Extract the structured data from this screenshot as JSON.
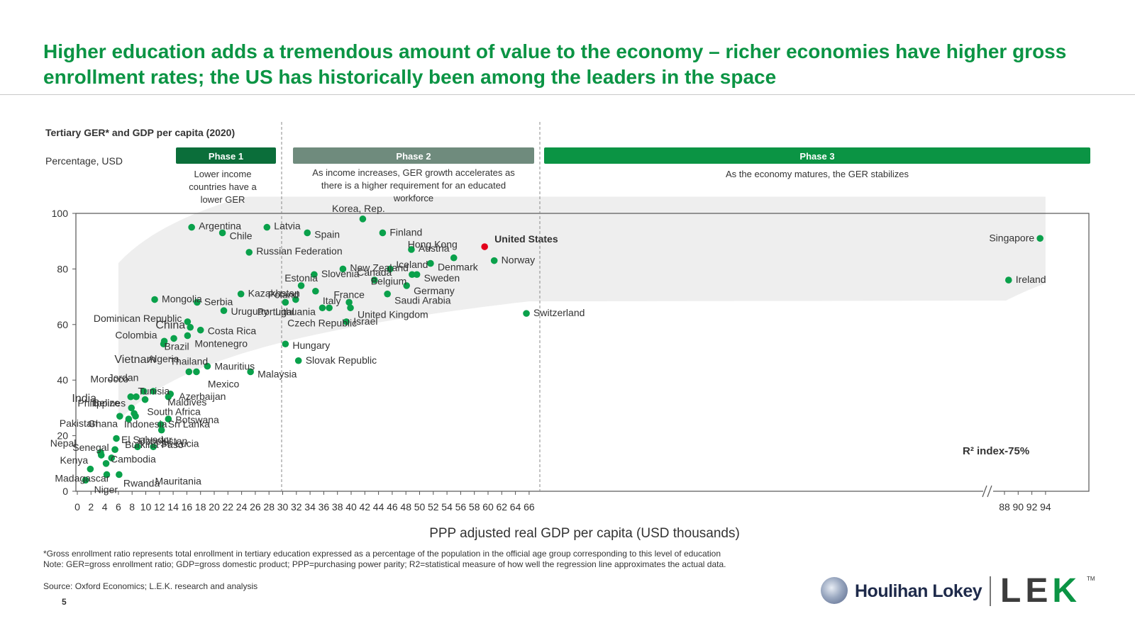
{
  "header": {
    "title": "Higher education adds a tremendous amount of value to the economy – richer economies have higher gross enrollment rates; the US has historically been among the leaders in the space"
  },
  "chart_data": {
    "type": "scatter",
    "title": "Tertiary GER* and GDP per capita (2020)",
    "subtitle": "Percentage, USD",
    "xlabel": "PPP adjusted real GDP per capita (USD thousands)",
    "ylabel": "",
    "xlim": [
      0,
      94
    ],
    "ylim": [
      0,
      100
    ],
    "x_axis_break": "after 66, continues 88–94",
    "x_ticks": [
      "0",
      "2",
      "4",
      "6",
      "8",
      "10",
      "12",
      "14",
      "16",
      "18",
      "20",
      "22",
      "24",
      "26",
      "28",
      "30",
      "32",
      "34",
      "36",
      "38",
      "40",
      "42",
      "44",
      "46",
      "48",
      "50",
      "52",
      "54",
      "56",
      "58",
      "60",
      "62",
      "64",
      "66",
      "88",
      "90",
      "92",
      "94"
    ],
    "y_ticks": [
      "0",
      "20",
      "40",
      "60",
      "80",
      "100"
    ],
    "grid": false,
    "phases": [
      {
        "label": "Phase 1",
        "description": "Lower income countries have a lower GER",
        "color": "#0b6e3a"
      },
      {
        "label": "Phase 2",
        "description": "As income increases, GER growth accelerates as there is a higher requirement for an educated workforce",
        "color": "#6f8b7d"
      },
      {
        "label": "Phase 3",
        "description": "As the economy matures, the GER stabilizes",
        "color": "#0b9444"
      }
    ],
    "annotation": "R² index-75%",
    "highlight_color": "#e3001b",
    "point_color": "#0aa14b",
    "points": [
      {
        "name": "Argentina",
        "x": 16.7,
        "y": 95
      },
      {
        "name": "Chile",
        "x": 21.2,
        "y": 93
      },
      {
        "name": "Latvia",
        "x": 27.7,
        "y": 95
      },
      {
        "name": "Spain",
        "x": 33.6,
        "y": 93
      },
      {
        "name": "Korea, Rep.",
        "x": 41.7,
        "y": 98
      },
      {
        "name": "Finland",
        "x": 44.6,
        "y": 93
      },
      {
        "name": "Russian Federation",
        "x": 25.1,
        "y": 86
      },
      {
        "name": "Austria",
        "x": 48.8,
        "y": 87
      },
      {
        "name": "Hong Kong",
        "x": 55.0,
        "y": 84
      },
      {
        "name": "United States",
        "x": 59.5,
        "y": 88
      },
      {
        "name": "Singapore",
        "x": 93.2,
        "y": 91
      },
      {
        "name": "Norway",
        "x": 60.9,
        "y": 83
      },
      {
        "name": "Denmark",
        "x": 51.6,
        "y": 82
      },
      {
        "name": "New Zealand",
        "x": 38.8,
        "y": 80
      },
      {
        "name": "Belgium",
        "x": 45.7,
        "y": 80
      },
      {
        "name": "Iceland",
        "x": 48.9,
        "y": 78
      },
      {
        "name": "Sweden",
        "x": 49.6,
        "y": 78
      },
      {
        "name": "Estonia",
        "x": 32.7,
        "y": 74
      },
      {
        "name": "Slovenia",
        "x": 34.6,
        "y": 78
      },
      {
        "name": "Canada",
        "x": 43.4,
        "y": 76
      },
      {
        "name": "Germany",
        "x": 48.1,
        "y": 74
      },
      {
        "name": "Ireland",
        "x": 88.6,
        "y": 76
      },
      {
        "name": "Saudi Arabia",
        "x": 45.3,
        "y": 71
      },
      {
        "name": "Italy",
        "x": 34.8,
        "y": 72
      },
      {
        "name": "Poland",
        "x": 30.4,
        "y": 68
      },
      {
        "name": "Portugal",
        "x": 31.9,
        "y": 69
      },
      {
        "name": "Lithuania",
        "x": 35.8,
        "y": 66
      },
      {
        "name": "Czech Republic",
        "x": 36.8,
        "y": 66
      },
      {
        "name": "France",
        "x": 39.7,
        "y": 68
      },
      {
        "name": "United Kingdom",
        "x": 39.9,
        "y": 66
      },
      {
        "name": "Israel",
        "x": 39.3,
        "y": 61
      },
      {
        "name": "Switzerland",
        "x": 65.6,
        "y": 64
      },
      {
        "name": "Kazakhstan",
        "x": 23.9,
        "y": 71
      },
      {
        "name": "Serbia",
        "x": 17.5,
        "y": 68
      },
      {
        "name": "Uruguay",
        "x": 21.4,
        "y": 65
      },
      {
        "name": "Mongolia",
        "x": 11.3,
        "y": 69
      },
      {
        "name": "Dominican Republic",
        "x": 16.1,
        "y": 61
      },
      {
        "name": "China",
        "x": 16.5,
        "y": 59
      },
      {
        "name": "Costa Rica",
        "x": 18.0,
        "y": 58
      },
      {
        "name": "Montenegro",
        "x": 16.1,
        "y": 56
      },
      {
        "name": "Colombia",
        "x": 12.7,
        "y": 54
      },
      {
        "name": "Algeria",
        "x": 12.6,
        "y": 53
      },
      {
        "name": "Brazil",
        "x": 14.1,
        "y": 55
      },
      {
        "name": "Hungary",
        "x": 30.4,
        "y": 53
      },
      {
        "name": "Slovak Republic",
        "x": 32.3,
        "y": 47
      },
      {
        "name": "Malaysia",
        "x": 25.3,
        "y": 43
      },
      {
        "name": "Mauritius",
        "x": 19.0,
        "y": 45
      },
      {
        "name": "Thailand",
        "x": 16.3,
        "y": 43
      },
      {
        "name": "Mexico",
        "x": 17.4,
        "y": 43
      },
      {
        "name": "Vietnam",
        "x": 9.7,
        "y": 36
      },
      {
        "name": "Maldives",
        "x": 11.1,
        "y": 36
      },
      {
        "name": "Tunisia",
        "x": 9.9,
        "y": 33
      },
      {
        "name": "Azerbaijan",
        "x": 13.6,
        "y": 35
      },
      {
        "name": "South Africa",
        "x": 13.3,
        "y": 34
      },
      {
        "name": "Jordan",
        "x": 8.6,
        "y": 34
      },
      {
        "name": "Morocco",
        "x": 7.8,
        "y": 34
      },
      {
        "name": "Philippines",
        "x": 7.9,
        "y": 30
      },
      {
        "name": "Indonesia",
        "x": 6.2,
        "y": 27
      },
      {
        "name": "India",
        "x": 7.5,
        "y": 26
      },
      {
        "name": "Belize",
        "x": 8.3,
        "y": 28
      },
      {
        "name": "El Salvador",
        "x": 8.5,
        "y": 27
      },
      {
        "name": "Botswana",
        "x": 13.3,
        "y": 26
      },
      {
        "name": "Sri Lanka",
        "x": 12.2,
        "y": 24
      },
      {
        "name": "Uzbekistan",
        "x": 12.3,
        "y": 22
      },
      {
        "name": "St. Lucia",
        "x": 11.1,
        "y": 16
      },
      {
        "name": "Ghana",
        "x": 5.7,
        "y": 19
      },
      {
        "name": "Pakistan",
        "x": 3.4,
        "y": 14
      },
      {
        "name": "Nepal",
        "x": 3.5,
        "y": 13
      },
      {
        "name": "Senegal",
        "x": 5.0,
        "y": 12
      },
      {
        "name": "Cambodia",
        "x": 8.8,
        "y": 16
      },
      {
        "name": "Kenya",
        "x": 4.2,
        "y": 10
      },
      {
        "name": "Burkina Faso",
        "x": 5.5,
        "y": 15
      },
      {
        "name": "Madagascar",
        "x": 1.9,
        "y": 8
      },
      {
        "name": "Mauritania",
        "x": 4.3,
        "y": 6
      },
      {
        "name": "Niger",
        "x": 1.2,
        "y": 4
      },
      {
        "name": "Rwanda",
        "x": 6.1,
        "y": 6
      }
    ]
  },
  "footnotes": {
    "note1": "*Gross enrollment ratio represents total enrollment in tertiary education expressed as a percentage of the population in the official age group corresponding to this level of education",
    "note2": "Note: GER=gross enrollment ratio; GDP=gross domestic product; PPP=purchasing power parity; R2=statistical measure of how well the regression line approximates the actual data.",
    "source": "Source: Oxford Economics; L.E.K. research and analysis"
  },
  "page_number": "5",
  "logos": {
    "houlihan": "Houlihan Lokey",
    "lek_l": "L",
    "lek_e": "E",
    "lek_k": "K",
    "tm": "TM"
  }
}
